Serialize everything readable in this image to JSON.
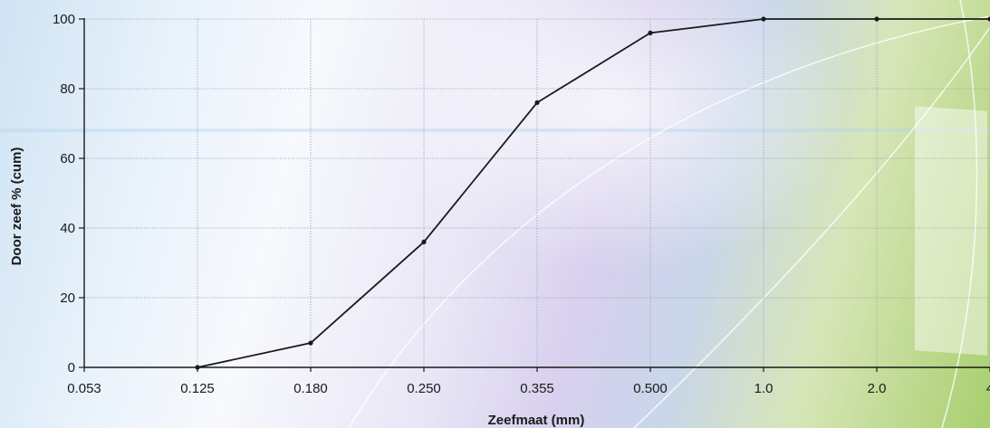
{
  "chart_data": {
    "type": "line",
    "title": "",
    "xlabel": "Zeefmaat (mm)",
    "ylabel": "Door zeef % (cum)",
    "categories": [
      "0.053",
      "0.125",
      "0.180",
      "0.250",
      "0.355",
      "0.500",
      "1.0",
      "2.0",
      "4"
    ],
    "y_ticks": [
      "0",
      "20",
      "40",
      "60",
      "80",
      "100"
    ],
    "ylim": [
      0,
      100
    ],
    "grid": true,
    "series": [
      {
        "values": [
          null,
          0,
          7,
          36,
          76,
          96,
          100,
          100,
          100
        ]
      }
    ],
    "line_color": "#1a1a1a",
    "grid_color": "#9aa4ae"
  }
}
